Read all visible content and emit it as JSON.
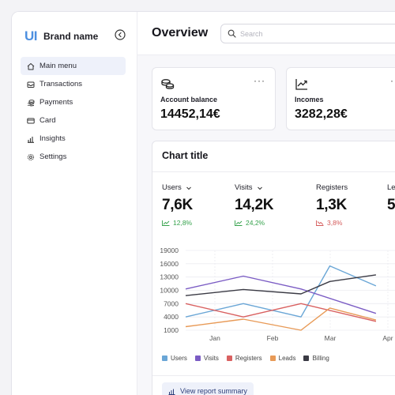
{
  "brand": {
    "logo": "UI",
    "name": "Brand name"
  },
  "sidebar": {
    "items": [
      {
        "label": "Main menu",
        "icon": "home-icon",
        "active": true
      },
      {
        "label": "Transactions",
        "icon": "inbox-icon",
        "active": false
      },
      {
        "label": "Payments",
        "icon": "coins-icon",
        "active": false
      },
      {
        "label": "Card",
        "icon": "credit-card-icon",
        "active": false
      },
      {
        "label": "Insights",
        "icon": "bar-chart-icon",
        "active": false
      },
      {
        "label": "Settings",
        "icon": "gear-icon",
        "active": false
      }
    ]
  },
  "header": {
    "title": "Overview",
    "search_placeholder": "Search"
  },
  "stats": [
    {
      "label": "Account balance",
      "value": "14452,14€",
      "icon": "coins-stack-icon"
    },
    {
      "label": "Incomes",
      "value": "3282,28€",
      "icon": "trend-up-icon"
    }
  ],
  "chart_card": {
    "title": "Chart title",
    "metrics": [
      {
        "name": "Users",
        "value": "7,6K",
        "change": "12,8%",
        "direction": "up",
        "dropdown": true
      },
      {
        "name": "Visits",
        "value": "14,2K",
        "change": "24,2%",
        "direction": "up",
        "dropdown": true
      },
      {
        "name": "Registers",
        "value": "1,3K",
        "change": "3,8%",
        "direction": "down",
        "dropdown": false
      },
      {
        "name": "Le",
        "value": "5",
        "change": "",
        "direction": "up",
        "dropdown": false
      }
    ],
    "report_button": "View report summary"
  },
  "chart_data": {
    "type": "line",
    "title": "",
    "xlabel": "",
    "ylabel": "",
    "categories": [
      "Jan",
      "Feb",
      "Mar",
      "Apr"
    ],
    "x": [
      0,
      0.5,
      1,
      1.5,
      2,
      2.5,
      3,
      3.3
    ],
    "y_ticks": [
      19000,
      16000,
      13000,
      10000,
      7000,
      4000,
      1000
    ],
    "ylim": [
      1000,
      19000
    ],
    "grid": true,
    "legend_position": "bottom-left",
    "series": [
      {
        "name": "Users",
        "color": "#6aa6d6",
        "values": [
          4000,
          null,
          7000,
          null,
          4000,
          15500,
          null,
          11000
        ]
      },
      {
        "name": "Visits",
        "color": "#7b5cc4",
        "values": [
          10300,
          null,
          13200,
          null,
          10300,
          null,
          null,
          4800
        ]
      },
      {
        "name": "Registers",
        "color": "#d96161",
        "values": [
          7000,
          null,
          4000,
          null,
          7000,
          null,
          null,
          3000
        ]
      },
      {
        "name": "Leads",
        "color": "#e89a57",
        "values": [
          1800,
          null,
          3500,
          null,
          1000,
          6000,
          null,
          3300
        ]
      },
      {
        "name": "Billing",
        "color": "#3a3a44",
        "values": [
          8800,
          null,
          10200,
          null,
          9200,
          12000,
          null,
          13500
        ]
      }
    ]
  }
}
